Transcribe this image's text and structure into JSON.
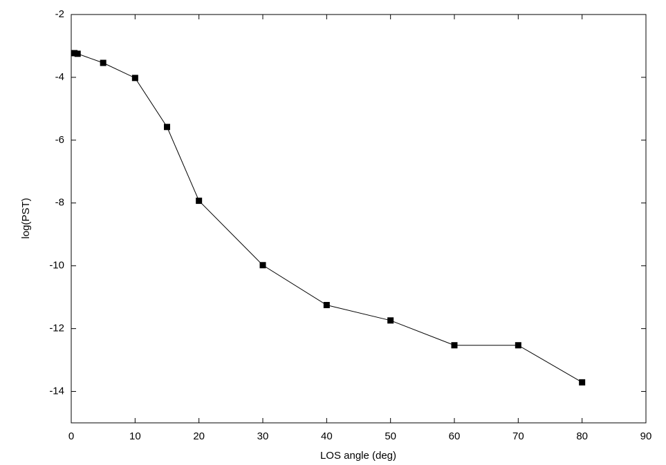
{
  "chart_data": {
    "type": "line",
    "x_label": "LOS angle (deg)",
    "y_label": "log(PST)",
    "x": [
      0.5,
      1,
      5,
      10,
      15,
      20,
      30,
      40,
      50,
      60,
      70,
      80
    ],
    "series": [
      {
        "color": "#000000",
        "values": [
          -3.23,
          -3.25,
          -3.54,
          -4.02,
          -5.58,
          -7.93,
          -9.98,
          -11.25,
          -11.74,
          -12.53,
          -12.53,
          -13.71
        ]
      }
    ],
    "xlim": [
      0,
      90
    ],
    "xticks": [
      0,
      10,
      20,
      30,
      40,
      50,
      60,
      70,
      80,
      90
    ],
    "ylim": [
      -15,
      -2
    ],
    "yticks": [
      -2,
      -4,
      -6,
      -8,
      -10,
      -12,
      -14
    ],
    "grid": false
  }
}
